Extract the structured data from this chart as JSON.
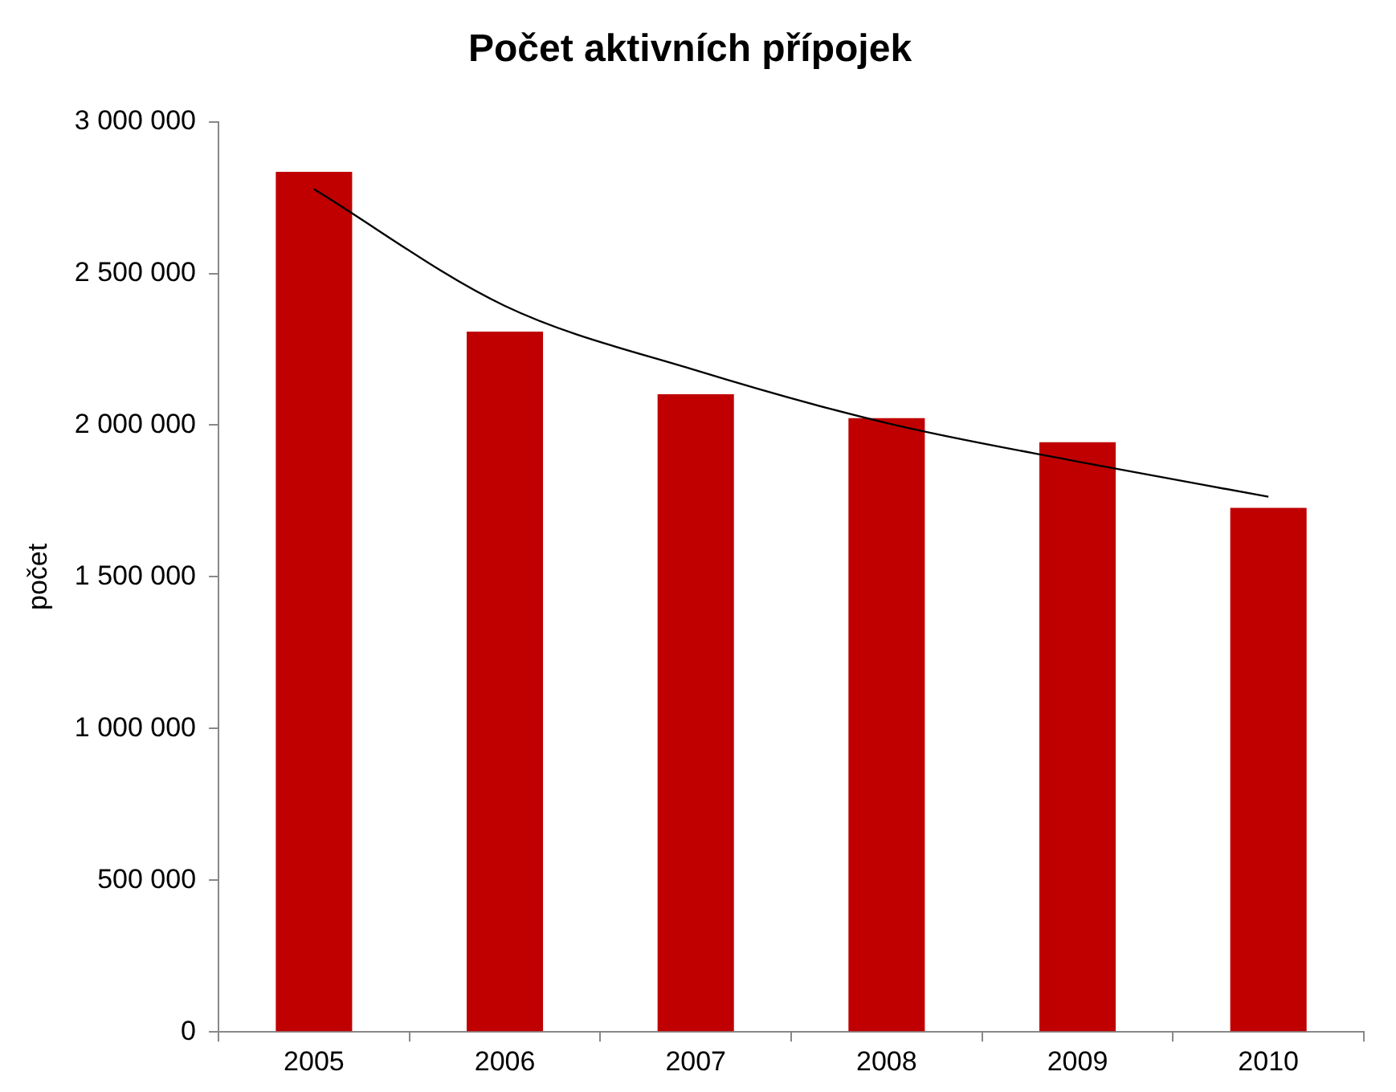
{
  "chart_data": {
    "type": "bar",
    "title": "Počet aktivních přípojek",
    "ylabel": "počet",
    "categories": [
      "2005",
      "2006",
      "2007",
      "2008",
      "2009",
      "2010"
    ],
    "series": [
      {
        "color": "#c00000",
        "values": [
          2835000,
          2308000,
          2102000,
          2023000,
          1944000,
          1727000
        ]
      },
      {
        "type": "line",
        "color": "#000000",
        "values": [
          2778000,
          2393000,
          2181000,
          2007000,
          1880000,
          1764000
        ]
      }
    ],
    "ylim": [
      0,
      3000000
    ],
    "yticks": [
      {
        "value": 0,
        "label": "0"
      },
      {
        "value": 500000,
        "label": "500 000"
      },
      {
        "value": 1000000,
        "label": "1 000 000"
      },
      {
        "value": 1500000,
        "label": "1 500 000"
      },
      {
        "value": 2000000,
        "label": "2 000 000"
      },
      {
        "value": 2500000,
        "label": "2 500 000"
      },
      {
        "value": 3000000,
        "label": "3 000 000"
      }
    ],
    "legend": false,
    "marker": "none"
  }
}
